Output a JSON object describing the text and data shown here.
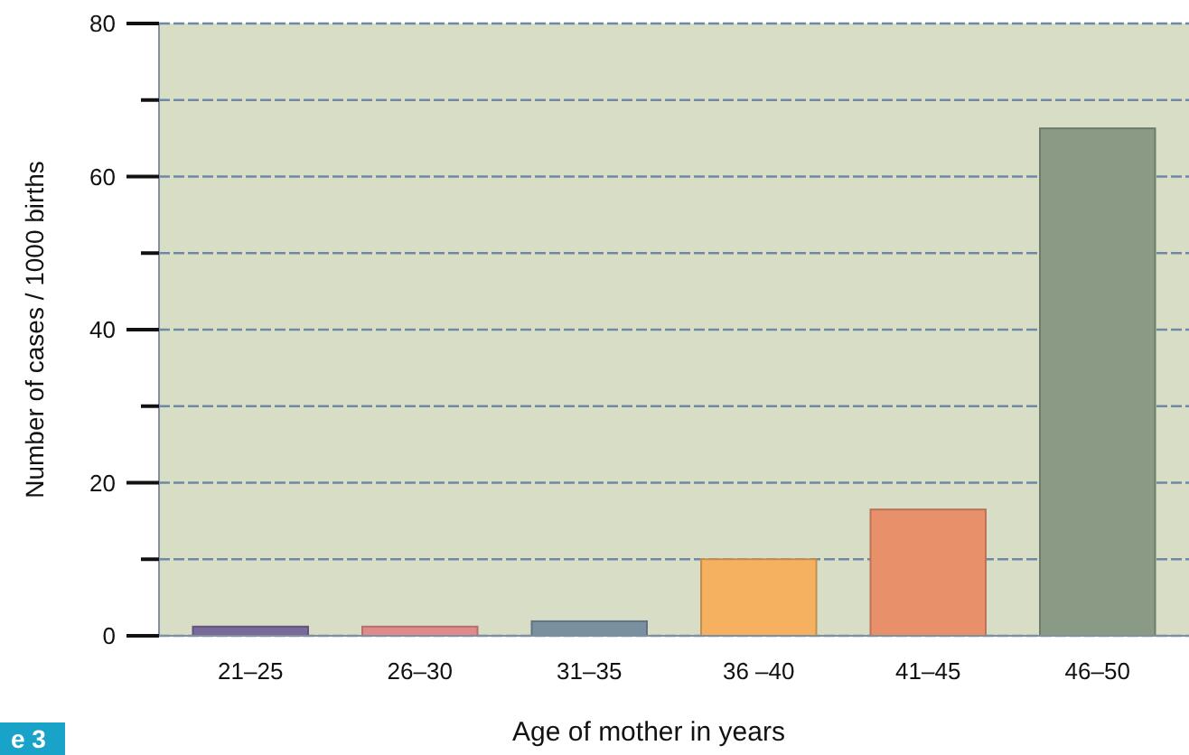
{
  "chart_data": {
    "type": "bar",
    "xlabel": "Age of mother in years",
    "ylabel": "Number of cases / 1000 births",
    "categories": [
      "21–25",
      "26–30",
      "31–35",
      "36 –40",
      "41–45",
      "46–50"
    ],
    "values": [
      1.2,
      1.2,
      1.9,
      10,
      16.5,
      66.3
    ],
    "colors": [
      "#7a6a9a",
      "#e08a8a",
      "#7890a0",
      "#f5b060",
      "#e8906a",
      "#8a9a84"
    ],
    "ylim": [
      0,
      80
    ],
    "yticks": [
      0,
      {
        "value": 10,
        "label": null
      },
      20,
      {
        "value": 30,
        "label": null
      },
      40,
      {
        "value": 50,
        "label": null
      },
      60,
      {
        "value": 70,
        "label": null
      },
      80
    ],
    "grid": true,
    "annotations": [
      "e 3"
    ]
  }
}
